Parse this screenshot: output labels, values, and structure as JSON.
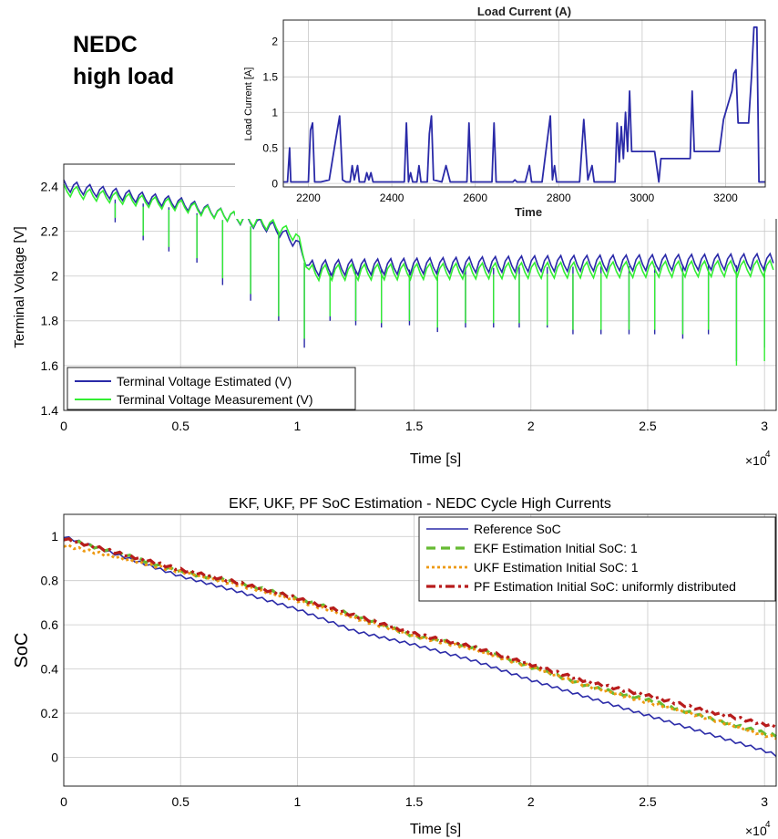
{
  "header": {
    "line1": "NEDC",
    "line2": "high load"
  },
  "charts": {
    "x_exponent_base": "×10",
    "x_exponent_power": "4"
  },
  "chart_data": [
    {
      "id": "voltage",
      "type": "line",
      "title": "",
      "xlabel": "Time [s]",
      "ylabel": "Terminal Voltage [V]",
      "xlim": [
        0,
        3.05
      ],
      "ylim": [
        1.4,
        2.5
      ],
      "x_multiplier": "×10^4",
      "xticks": [
        "0",
        "0.5",
        "1",
        "1.5",
        "2",
        "2.5",
        "3"
      ],
      "yticks": [
        "1.4",
        "1.6",
        "1.8",
        "2",
        "2.2",
        "2.4"
      ],
      "grid": true,
      "legend_position": "bottom-left",
      "series": [
        {
          "name": "Terminal Voltage Estimated (V)",
          "color": "#2a2aa8",
          "envelope": {
            "x": [
              0,
              0.1,
              0.5,
              0.9,
              1.0,
              1.05,
              2.0,
              3.05
            ],
            "y": [
              2.43,
              2.41,
              2.35,
              2.24,
              2.17,
              2.07,
              2.09,
              2.1
            ]
          },
          "dips": {
            "x": [
              0.22,
              0.34,
              0.45,
              0.57,
              0.68,
              0.8,
              0.92,
              1.03,
              1.14,
              1.25,
              1.36,
              1.48,
              1.6,
              1.72,
              1.84,
              1.95,
              2.07,
              2.18,
              2.3,
              2.42,
              2.53,
              2.65,
              2.76,
              2.88,
              3.0
            ],
            "y": [
              2.24,
              2.16,
              2.11,
              2.06,
              1.96,
              1.89,
              1.8,
              1.68,
              1.8,
              1.78,
              1.77,
              1.78,
              1.75,
              1.77,
              1.77,
              1.77,
              1.77,
              1.74,
              1.74,
              1.74,
              1.74,
              1.72,
              1.74,
              1.62,
              1.68
            ]
          }
        },
        {
          "name": "Terminal Voltage Measurement (V)",
          "color": "#33ee33",
          "envelope": {
            "x": [
              0,
              0.1,
              0.5,
              0.9,
              1.0,
              1.05,
              2.0,
              3.05
            ],
            "y": [
              2.41,
              2.39,
              2.34,
              2.25,
              2.2,
              2.05,
              2.06,
              2.07
            ]
          },
          "dips": {
            "x": [
              0.22,
              0.34,
              0.45,
              0.57,
              0.68,
              0.8,
              0.92,
              1.03,
              1.14,
              1.25,
              1.36,
              1.48,
              1.6,
              1.72,
              1.84,
              1.95,
              2.07,
              2.18,
              2.3,
              2.42,
              2.53,
              2.65,
              2.76,
              2.88,
              3.0
            ],
            "y": [
              2.26,
              2.18,
              2.13,
              2.08,
              1.99,
              1.92,
              1.82,
              1.72,
              1.82,
              1.8,
              1.79,
              1.8,
              1.77,
              1.79,
              1.79,
              1.79,
              1.78,
              1.76,
              1.76,
              1.76,
              1.76,
              1.74,
              1.76,
              1.6,
              1.62
            ]
          }
        }
      ]
    },
    {
      "id": "load",
      "type": "line",
      "title": "Load Current (A)",
      "xlabel": "Time",
      "ylabel": "Load Current [A]",
      "xlim": [
        2140,
        3295
      ],
      "ylim": [
        -0.05,
        2.3
      ],
      "xticks": [
        "2200",
        "2400",
        "2600",
        "2800",
        "3000",
        "3200"
      ],
      "yticks": [
        "0",
        "0.5",
        "1",
        "1.5",
        "2"
      ],
      "grid": true,
      "series": [
        {
          "name": "",
          "color": "#2a2aa8",
          "x": [
            2140,
            2150,
            2155,
            2158,
            2162,
            2200,
            2205,
            2210,
            2215,
            2230,
            2250,
            2265,
            2275,
            2282,
            2290,
            2300,
            2305,
            2310,
            2318,
            2322,
            2335,
            2340,
            2345,
            2350,
            2355,
            2370,
            2385,
            2395,
            2400,
            2430,
            2435,
            2440,
            2445,
            2450,
            2460,
            2465,
            2470,
            2485,
            2490,
            2495,
            2500,
            2520,
            2530,
            2540,
            2550,
            2580,
            2585,
            2590,
            2595,
            2640,
            2645,
            2650,
            2655,
            2670,
            2690,
            2695,
            2700,
            2720,
            2730,
            2735,
            2740,
            2750,
            2760,
            2780,
            2785,
            2790,
            2795,
            2840,
            2850,
            2860,
            2870,
            2880,
            2885,
            2890,
            2895,
            2935,
            2940,
            2945,
            2950,
            2955,
            2960,
            2965,
            2970,
            2975,
            2980,
            2985,
            2990,
            2995,
            3000,
            3010,
            3030,
            3040,
            3045,
            3050,
            3055,
            3080,
            3110,
            3115,
            3120,
            3125,
            3130,
            3135,
            3160,
            3170,
            3175,
            3185,
            3195,
            3205,
            3215,
            3220,
            3225,
            3230,
            3235,
            3245,
            3255,
            3262,
            3268,
            3275,
            3280,
            3285,
            3295
          ],
          "y": [
            0.02,
            0.02,
            0.5,
            0.02,
            0.02,
            0.02,
            0.75,
            0.85,
            0.02,
            0.02,
            0.05,
            0.6,
            0.95,
            0.05,
            0.02,
            0.02,
            0.25,
            0.05,
            0.25,
            0.02,
            0.02,
            0.15,
            0.05,
            0.15,
            0.02,
            0.02,
            0.02,
            0.02,
            0.02,
            0.02,
            0.85,
            0.02,
            0.15,
            0.02,
            0.02,
            0.25,
            0.02,
            0.02,
            0.7,
            0.95,
            0.05,
            0.02,
            0.25,
            0.02,
            0.02,
            0.02,
            0.85,
            0.02,
            0.02,
            0.02,
            0.85,
            0.02,
            0.02,
            0.02,
            0.02,
            0.05,
            0.02,
            0.02,
            0.25,
            0.02,
            0.02,
            0.02,
            0.02,
            0.95,
            0.05,
            0.25,
            0.02,
            0.02,
            0.02,
            0.9,
            0.05,
            0.25,
            0.02,
            0.02,
            0.02,
            0.02,
            0.85,
            0.3,
            0.8,
            0.35,
            1.0,
            0.45,
            1.3,
            0.45,
            0.45,
            0.45,
            0.45,
            0.45,
            0.45,
            0.45,
            0.45,
            0.02,
            0.35,
            0.35,
            0.35,
            0.35,
            0.35,
            0.35,
            1.3,
            0.45,
            0.45,
            0.45,
            0.45,
            0.45,
            0.45,
            0.45,
            0.9,
            1.1,
            1.3,
            1.55,
            1.6,
            0.85,
            0.85,
            0.85,
            0.85,
            1.5,
            2.2,
            2.2,
            0.02,
            0.02,
            0.02
          ]
        }
      ]
    },
    {
      "id": "soc",
      "type": "line",
      "title": "EKF, UKF, PF SoC Estimation - NEDC Cycle High Currents",
      "xlabel": "Time [s]",
      "ylabel": "SoC",
      "xlim": [
        0,
        3.05
      ],
      "ylim": [
        -0.13,
        1.1
      ],
      "x_multiplier": "×10^4",
      "xticks": [
        "0",
        "0.5",
        "1",
        "1.5",
        "2",
        "2.5",
        "3"
      ],
      "yticks": [
        "0",
        "0.2",
        "0.4",
        "0.6",
        "0.8",
        "1"
      ],
      "grid": true,
      "legend_position": "top-right",
      "series": [
        {
          "name": "Reference SoC",
          "color": "#2a2aa8",
          "style": "solid",
          "x": [
            0,
            0.25,
            0.5,
            0.75,
            1.0,
            1.25,
            1.5,
            1.75,
            2.0,
            2.25,
            2.5,
            2.75,
            3.0,
            3.05
          ],
          "y": [
            1.0,
            0.91,
            0.82,
            0.75,
            0.67,
            0.57,
            0.51,
            0.44,
            0.35,
            0.27,
            0.19,
            0.11,
            0.03,
            0.01
          ]
        },
        {
          "name": "EKF Estimation Initial SoC: 1",
          "color": "#66bb33",
          "style": "dashed",
          "x": [
            0,
            0.25,
            0.5,
            0.75,
            1.0,
            1.25,
            1.5,
            1.75,
            2.0,
            2.25,
            2.5,
            2.75,
            3.0,
            3.05
          ],
          "y": [
            0.99,
            0.92,
            0.84,
            0.79,
            0.72,
            0.64,
            0.55,
            0.5,
            0.41,
            0.32,
            0.26,
            0.18,
            0.11,
            0.1
          ]
        },
        {
          "name": "UKF Estimation Initial SoC: 1",
          "color": "#ee9911",
          "style": "dotted",
          "x": [
            0,
            0.25,
            0.5,
            0.75,
            1.0,
            1.25,
            1.5,
            1.75,
            2.0,
            2.25,
            2.5,
            2.75,
            3.0,
            3.05
          ],
          "y": [
            0.96,
            0.9,
            0.84,
            0.78,
            0.71,
            0.63,
            0.55,
            0.49,
            0.41,
            0.32,
            0.25,
            0.18,
            0.1,
            0.09
          ]
        },
        {
          "name": "PF Estimation Initial SoC: uniformly distributed",
          "color": "#b81c1c",
          "style": "dashdot",
          "x": [
            0,
            0.25,
            0.5,
            0.75,
            1.0,
            1.25,
            1.5,
            1.75,
            2.0,
            2.25,
            2.5,
            2.75,
            3.0,
            3.05
          ],
          "y": [
            0.99,
            0.92,
            0.85,
            0.79,
            0.72,
            0.64,
            0.56,
            0.5,
            0.42,
            0.34,
            0.28,
            0.21,
            0.15,
            0.14
          ]
        }
      ]
    }
  ]
}
